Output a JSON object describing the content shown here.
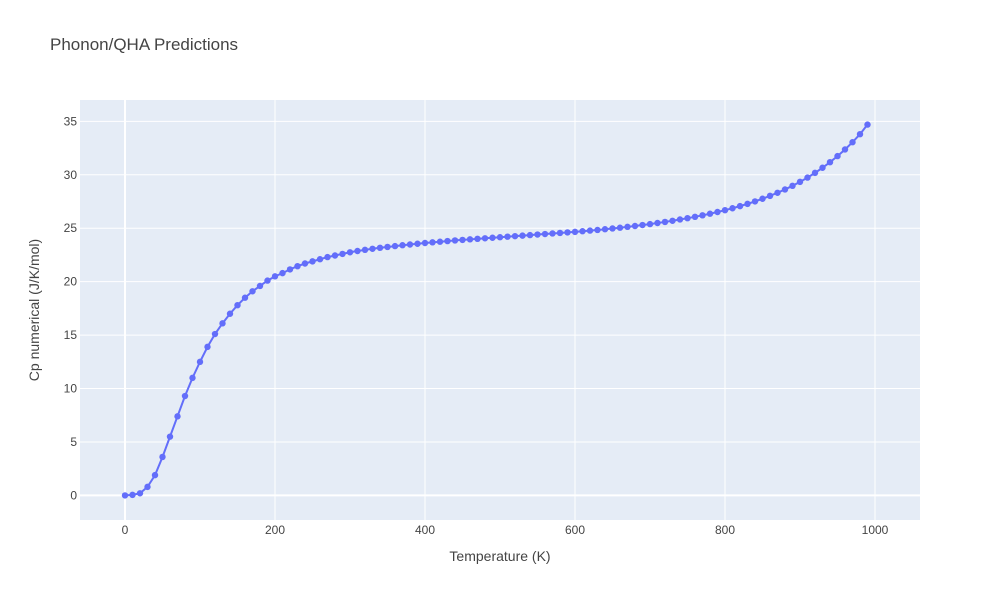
{
  "chart_data": {
    "type": "line",
    "title": "Phonon/QHA Predictions",
    "xlabel": "Temperature (K)",
    "ylabel": "Cp numerical (J/K/mol)",
    "xlim": [
      -60,
      1060
    ],
    "ylim": [
      -2.3,
      37.0
    ],
    "xticks": [
      0,
      200,
      400,
      600,
      800,
      1000
    ],
    "yticks": [
      0,
      5,
      10,
      15,
      20,
      25,
      30,
      35
    ],
    "grid": true,
    "colors": {
      "series": "#636efa",
      "plot_bg": "#e5ecf6",
      "grid": "#ffffff"
    },
    "series": [
      {
        "mode": "lines+markers",
        "x": [
          0,
          10,
          20,
          30,
          40,
          50,
          60,
          70,
          80,
          90,
          100,
          110,
          120,
          130,
          140,
          150,
          160,
          170,
          180,
          190,
          200,
          210,
          220,
          230,
          240,
          250,
          260,
          270,
          280,
          290,
          300,
          310,
          320,
          330,
          340,
          350,
          360,
          370,
          380,
          390,
          400,
          410,
          420,
          430,
          440,
          450,
          460,
          470,
          480,
          490,
          500,
          510,
          520,
          530,
          540,
          550,
          560,
          570,
          580,
          590,
          600,
          610,
          620,
          630,
          640,
          650,
          660,
          670,
          680,
          690,
          700,
          710,
          720,
          730,
          740,
          750,
          760,
          770,
          780,
          790,
          800,
          810,
          820,
          830,
          840,
          850,
          860,
          870,
          880,
          890,
          900,
          910,
          920,
          930,
          940,
          950,
          960,
          970,
          980,
          990
        ],
        "y": [
          0.0,
          0.05,
          0.2,
          0.8,
          1.9,
          3.6,
          5.5,
          7.4,
          9.3,
          11.0,
          12.5,
          13.9,
          15.1,
          16.1,
          17.0,
          17.8,
          18.5,
          19.1,
          19.6,
          20.1,
          20.5,
          20.8,
          21.15,
          21.45,
          21.7,
          21.9,
          22.1,
          22.3,
          22.45,
          22.6,
          22.75,
          22.87,
          22.98,
          23.08,
          23.17,
          23.25,
          23.33,
          23.41,
          23.48,
          23.55,
          23.62,
          23.68,
          23.74,
          23.8,
          23.86,
          23.91,
          23.96,
          24.01,
          24.06,
          24.11,
          24.16,
          24.21,
          24.26,
          24.31,
          24.36,
          24.41,
          24.46,
          24.51,
          24.56,
          24.61,
          24.66,
          24.72,
          24.78,
          24.84,
          24.91,
          24.98,
          25.05,
          25.13,
          25.21,
          25.3,
          25.39,
          25.49,
          25.59,
          25.7,
          25.82,
          25.94,
          26.07,
          26.21,
          26.36,
          26.52,
          26.69,
          26.87,
          27.07,
          27.28,
          27.51,
          27.76,
          28.03,
          28.32,
          28.63,
          28.97,
          29.34,
          29.74,
          30.18,
          30.66,
          31.18,
          31.75,
          32.37,
          33.05,
          33.8,
          34.7
        ]
      }
    ]
  }
}
